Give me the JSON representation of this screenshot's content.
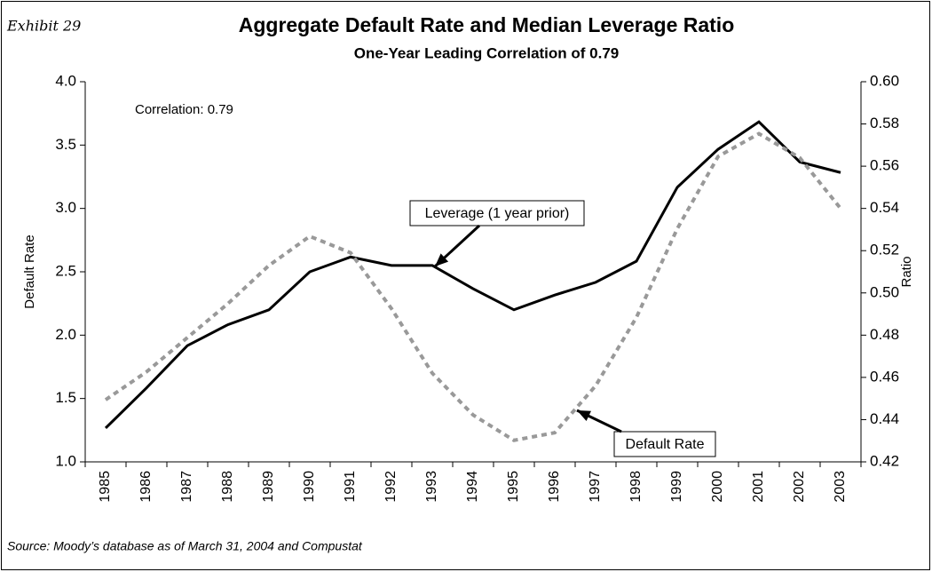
{
  "exhibit": "Exhibit 29",
  "source": "Source: Moody’s database as of March 31, 2004 and Compustat",
  "chart_data": {
    "type": "line",
    "title": "Aggregate Default Rate and Median Leverage Ratio",
    "subtitle": "One-Year Leading Correlation of 0.79",
    "y_label": "Default Rate",
    "y2_label": "Ratio",
    "annotation": "Correlation:  0.79",
    "categories": [
      "1985",
      "1986",
      "1987",
      "1988",
      "1989",
      "1990",
      "1991",
      "1992",
      "1993",
      "1994",
      "1995",
      "1996",
      "1997",
      "1998",
      "1999",
      "2000",
      "2001",
      "2002",
      "2003"
    ],
    "series": [
      {
        "name": "Leverage (1 year prior)",
        "color": "#000000",
        "dashed": false,
        "axis": "y2",
        "values": [
          0.436,
          0.455,
          0.475,
          0.485,
          0.492,
          0.51,
          0.517,
          0.513,
          0.513,
          0.502,
          0.492,
          0.499,
          0.505,
          0.515,
          0.55,
          0.568,
          0.581,
          0.562,
          0.557
        ]
      },
      {
        "name": "Default Rate",
        "color": "#999999",
        "dashed": true,
        "axis": "y",
        "values": [
          1.49,
          1.71,
          1.98,
          2.25,
          2.55,
          2.78,
          2.65,
          2.21,
          1.7,
          1.37,
          1.17,
          1.23,
          1.6,
          2.14,
          2.84,
          3.41,
          3.59,
          3.4,
          3.0
        ]
      }
    ],
    "ylim": [
      1,
      4
    ],
    "yticks": [
      {
        "value": 1,
        "label": "1.0"
      },
      1.5,
      {
        "value": 2,
        "label": "2.0"
      },
      2.5,
      {
        "value": 3,
        "label": "3.0"
      },
      3.5,
      {
        "value": 4,
        "label": "4.0"
      }
    ],
    "y2lim": [
      0.42,
      0.6
    ],
    "y2ticks": [
      0.42,
      0.44,
      0.46,
      0.48,
      {
        "value": 0.5,
        "label": "0.50"
      },
      0.52,
      0.54,
      0.56,
      0.58,
      {
        "value": 0.6,
        "label": "0.60"
      }
    ]
  }
}
